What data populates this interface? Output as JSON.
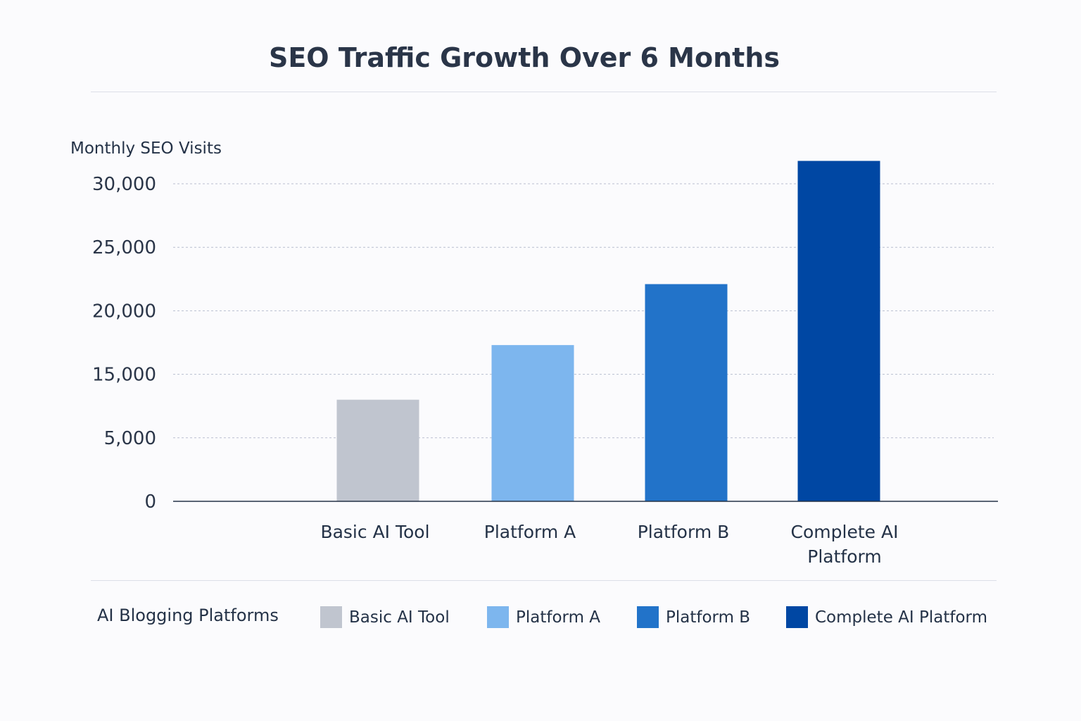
{
  "chart_data": {
    "type": "bar",
    "title": "SEO Traffic Growth Over 6 Months",
    "ylabel": "Monthly SEO Visits",
    "xlabel": "",
    "categories": [
      "Basic AI Tool",
      "Platform A",
      "Platform B",
      "Complete AI Platform"
    ],
    "values": [
      11000,
      17300,
      22100,
      31800
    ],
    "colors": [
      "#c0c5cf",
      "#7db6ee",
      "#2273c9",
      "#0047a3"
    ],
    "y_ticks": [
      0,
      5000,
      15000,
      20000,
      25000,
      30000
    ],
    "y_tick_labels": [
      "0",
      "5,000",
      "15,000",
      "20,000",
      "25,000",
      "30,000"
    ],
    "grid": true,
    "legend": {
      "title": "AI Blogging Platforms",
      "placement": "bottom",
      "entries": [
        "Basic AI Tool",
        "Platform A",
        "Platform B",
        "Complete AI Platform"
      ]
    }
  }
}
